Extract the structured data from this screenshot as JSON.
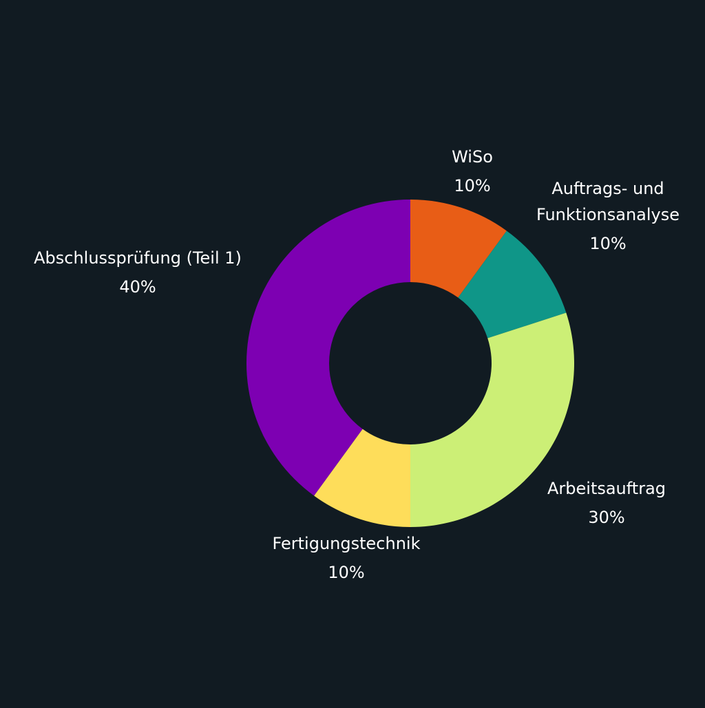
{
  "background": "#111b22",
  "chart_data": {
    "type": "pie",
    "variant": "donut",
    "slices": [
      {
        "label": "WiSo",
        "value": 10,
        "value_label": "10%",
        "color": "#e85d16"
      },
      {
        "label": "Auftrags- und Funktionsanalyse",
        "label_lines": [
          "Auftrags- und",
          "Funktionsanalyse"
        ],
        "value": 10,
        "value_label": "10%",
        "color": "#0f9688"
      },
      {
        "label": "Arbeitsauftrag",
        "value": 30,
        "value_label": "30%",
        "color": "#ccef76"
      },
      {
        "label": "Fertigungstechnik",
        "value": 10,
        "value_label": "10%",
        "color": "#fedd5a"
      },
      {
        "label": "Abschlussprüfung (Teil 1)",
        "value": 40,
        "value_label": "40%",
        "color": "#7d00b2"
      }
    ]
  }
}
